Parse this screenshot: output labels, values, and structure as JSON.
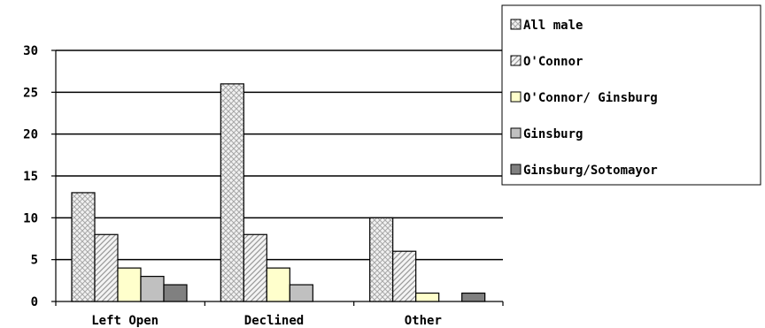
{
  "chart_data": {
    "type": "bar",
    "title": "",
    "xlabel": "",
    "ylabel": "",
    "categories": [
      "Left Open",
      "Declined",
      "Other"
    ],
    "ylim": [
      0,
      30
    ],
    "yticks": [
      0,
      5,
      10,
      15,
      20,
      25,
      30
    ],
    "grid": true,
    "legend_position": "top-right",
    "series": [
      {
        "name": "All male",
        "values": [
          13,
          26,
          10
        ],
        "color": "#e6e6e6",
        "pattern": "crosshatch"
      },
      {
        "name": "O'Connor",
        "values": [
          8,
          8,
          6
        ],
        "color": "#e6e6e6",
        "pattern": "diagonal"
      },
      {
        "name": "O'Connor/ Ginsburg",
        "values": [
          4,
          4,
          1
        ],
        "color": "#ffffcc",
        "pattern": "solid"
      },
      {
        "name": "Ginsburg",
        "values": [
          3,
          2,
          0
        ],
        "color": "#c0c0c0",
        "pattern": "solid"
      },
      {
        "name": "Ginsburg/Sotomayor",
        "values": [
          2,
          0,
          1
        ],
        "color": "#808080",
        "pattern": "solid"
      }
    ]
  }
}
